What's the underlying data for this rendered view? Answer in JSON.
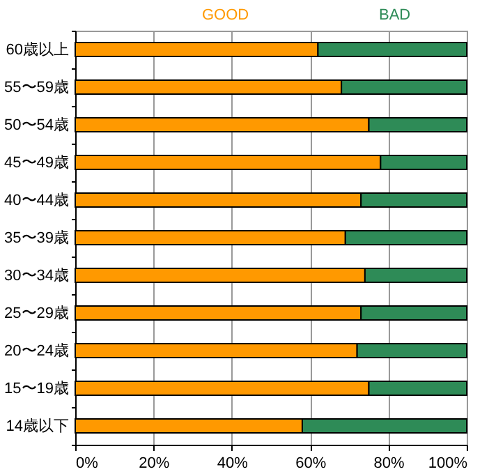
{
  "chart_data": {
    "type": "bar",
    "orientation": "horizontal",
    "stacked": true,
    "categories": [
      "60歳以上",
      "55〜59歳",
      "50〜54歳",
      "45〜49歳",
      "40〜44歳",
      "35〜39歳",
      "30〜34歳",
      "25〜29歳",
      "20〜24歳",
      "15〜19歳",
      "14歳以下"
    ],
    "series": [
      {
        "name": "GOOD",
        "color": "#ff9900",
        "values": [
          62,
          68,
          75,
          78,
          73,
          69,
          74,
          73,
          72,
          75,
          58
        ]
      },
      {
        "name": "BAD",
        "color": "#2e8b57",
        "values": [
          38,
          32,
          25,
          22,
          27,
          31,
          26,
          27,
          28,
          25,
          42
        ]
      }
    ],
    "xlim": [
      0,
      100
    ],
    "xticks": [
      {
        "value": 0,
        "label": "0%"
      },
      {
        "value": 20,
        "label": "20%"
      },
      {
        "value": 40,
        "label": "40%"
      },
      {
        "value": 60,
        "label": "60%"
      },
      {
        "value": 80,
        "label": "80%"
      },
      {
        "value": 100,
        "label": "100%"
      }
    ],
    "grid": "x",
    "legend": "top"
  }
}
